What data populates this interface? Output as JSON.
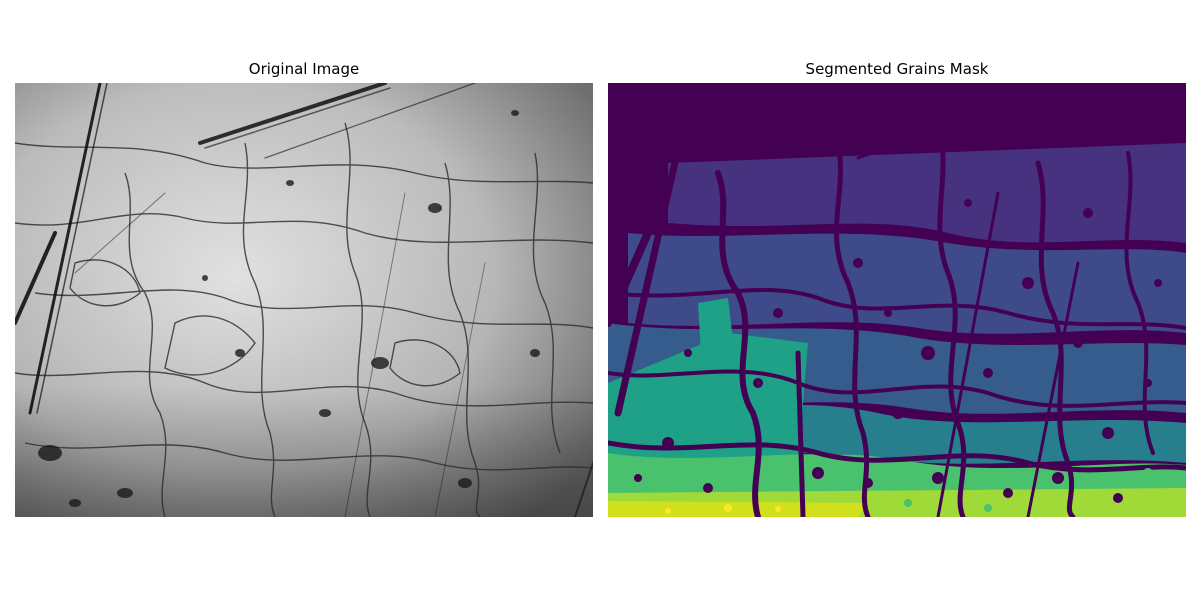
{
  "figure": {
    "panels": [
      {
        "title": "Original Image",
        "kind": "grayscale-photo"
      },
      {
        "title": "Segmented Grains Mask",
        "kind": "label-mask",
        "colormap": "viridis"
      }
    ]
  },
  "colors": {
    "background": "#ffffff",
    "viridis": [
      "#440154",
      "#46327e",
      "#365c8d",
      "#277f8e",
      "#1fa187",
      "#4ac16d",
      "#a0da39",
      "#fde725"
    ]
  }
}
